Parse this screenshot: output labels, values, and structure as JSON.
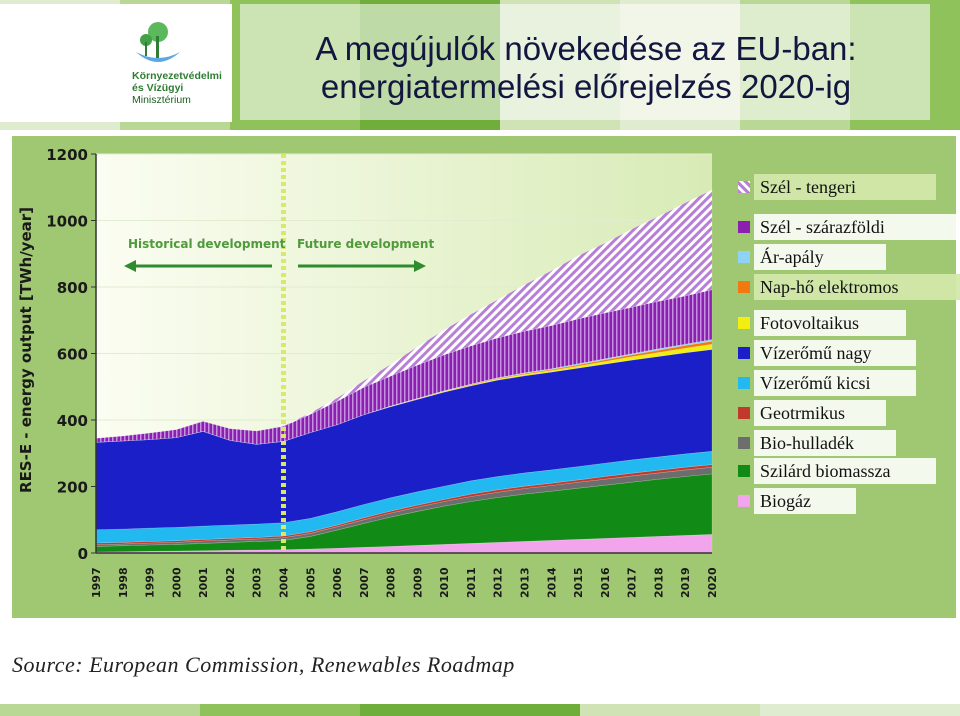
{
  "header": {
    "title_line1": "A megújulók növekedése az EU-ban:",
    "title_line2": "energiatermelési előrejelzés 2020-ig",
    "logo_line1": "Környezetvédelmi",
    "logo_line2": "és Vízügyi",
    "logo_line3": "Minisztérium"
  },
  "colors": {
    "header_stripes": [
      "#dfeccf",
      "#b9d795",
      "#8fc25a",
      "#6fae3a",
      "#cfe3b5"
    ],
    "chart_background": "#a0c872"
  },
  "chart_data": {
    "type": "area",
    "stacked": true,
    "title": "",
    "ylabel": "RES-E - energy output [TWh/year]",
    "xlabel": "",
    "ylim": [
      0,
      1200
    ],
    "yticks": [
      "0",
      "200",
      "400",
      "600",
      "800",
      "1000",
      "1200"
    ],
    "x": [
      "1997",
      "1998",
      "1999",
      "2000",
      "2001",
      "2002",
      "2003",
      "2004",
      "2005",
      "2006",
      "2007",
      "2008",
      "2009",
      "2010",
      "2011",
      "2012",
      "2013",
      "2014",
      "2015",
      "2016",
      "2017",
      "2018",
      "2019",
      "2020"
    ],
    "split_year": "2004",
    "annotations": {
      "historical": "Historical development",
      "future": "Future development"
    },
    "series": [
      {
        "name": "Biogáz",
        "color": "#f2a4ec",
        "values": [
          3,
          4,
          5,
          6,
          7,
          8,
          9,
          10,
          12,
          14,
          17,
          20,
          23,
          26,
          29,
          32,
          35,
          38,
          41,
          44,
          47,
          50,
          53,
          56
        ]
      },
      {
        "name": "Szilárd biomassza",
        "color": "#128a16",
        "values": [
          17,
          18,
          19,
          20,
          22,
          24,
          26,
          28,
          38,
          55,
          72,
          88,
          102,
          115,
          126,
          135,
          142,
          148,
          154,
          160,
          166,
          172,
          177,
          182
        ]
      },
      {
        "name": "Bio-hulladék",
        "color": "#6d6d6d",
        "values": [
          5,
          5,
          6,
          6,
          7,
          7,
          7,
          8,
          9,
          10,
          11,
          12,
          13,
          14,
          15,
          16,
          17,
          17,
          18,
          18,
          19,
          19,
          20,
          20
        ]
      },
      {
        "name": "Geotrmikus",
        "color": "#c0392b",
        "values": [
          5,
          5,
          5,
          5,
          5,
          5,
          5,
          5,
          5,
          5,
          6,
          6,
          6,
          6,
          7,
          7,
          7,
          7,
          7,
          8,
          8,
          8,
          8,
          8
        ]
      },
      {
        "name": "Vízerőmű kicsi",
        "color": "#22b8f0",
        "values": [
          40,
          40,
          40,
          40,
          40,
          40,
          40,
          40,
          40,
          40,
          40,
          40,
          40,
          40,
          40,
          40,
          40,
          40,
          40,
          40,
          40,
          40,
          40,
          40
        ]
      },
      {
        "name": "Vízerőmű nagy",
        "color": "#1a1fc8",
        "values": [
          263,
          265,
          266,
          270,
          285,
          255,
          240,
          245,
          258,
          262,
          270,
          274,
          278,
          283,
          286,
          290,
          292,
          294,
          296,
          298,
          300,
          302,
          304,
          306
        ]
      },
      {
        "name": "Fotovoltaikus",
        "color": "#f2ee12",
        "values": [
          0,
          0,
          0,
          0,
          0,
          0,
          0,
          0,
          0,
          0,
          0,
          1,
          1,
          2,
          2,
          3,
          4,
          5,
          6,
          8,
          10,
          12,
          14,
          16
        ]
      },
      {
        "name": "Nap-hő elektromos",
        "color": "#f07a10",
        "values": [
          0,
          0,
          0,
          0,
          0,
          0,
          0,
          0,
          0,
          0,
          0,
          0,
          1,
          1,
          2,
          2,
          3,
          3,
          4,
          5,
          6,
          7,
          8,
          9
        ]
      },
      {
        "name": "Ár-apály",
        "color": "#8ed3f5",
        "values": [
          0,
          0,
          0,
          0,
          0,
          0,
          0,
          0,
          0,
          0,
          0,
          1,
          1,
          1,
          1,
          2,
          2,
          2,
          3,
          3,
          3,
          4,
          4,
          5
        ]
      },
      {
        "name": "Szél - szárazföldi",
        "color": "#8a1fb0",
        "values": [
          12,
          15,
          20,
          24,
          30,
          35,
          40,
          45,
          55,
          70,
          82,
          90,
          100,
          108,
          115,
          120,
          125,
          130,
          135,
          138,
          140,
          143,
          145,
          150
        ]
      },
      {
        "name": "Szél - tengeri",
        "color": "#b77fd6",
        "values": [
          0,
          0,
          0,
          0,
          0,
          0,
          0,
          1,
          4,
          10,
          20,
          35,
          55,
          75,
          95,
          115,
          140,
          165,
          190,
          210,
          235,
          255,
          280,
          300
        ]
      }
    ],
    "legend_placement": "right"
  },
  "footer": {
    "source": "Source: European Commission, Renewables Roadmap"
  }
}
